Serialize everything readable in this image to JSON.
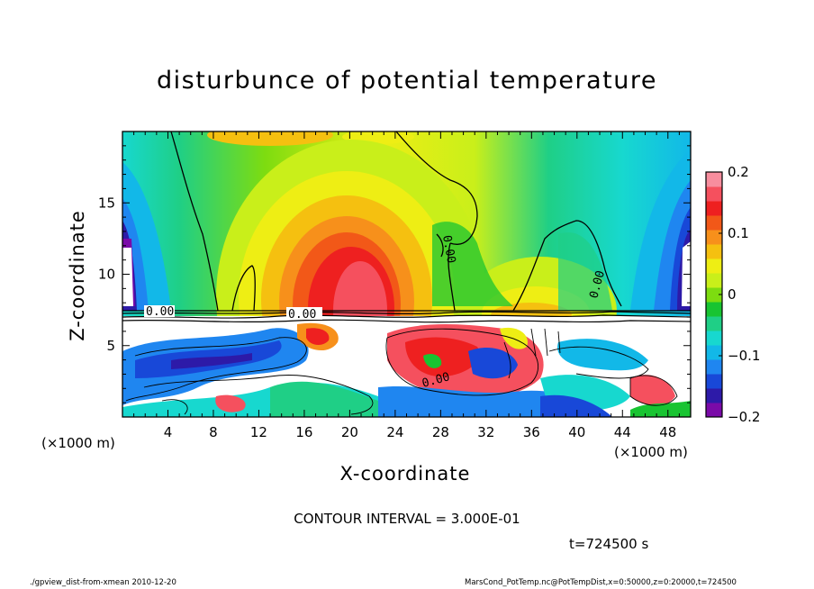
{
  "chart_data": {
    "type": "heatmap",
    "title": "disturbunce of potential temperature",
    "xlabel": "X-coordinate",
    "ylabel": "Z-coordinate",
    "x_unit_left": "(×1000 m)",
    "x_unit_right": "(×1000 m)",
    "xlim": [
      0,
      50
    ],
    "ylim": [
      0,
      20
    ],
    "x_ticks": [
      4,
      8,
      12,
      16,
      20,
      24,
      28,
      32,
      36,
      40,
      44,
      48
    ],
    "y_ticks": [
      5,
      10,
      15
    ],
    "colorbar": {
      "vmin": -0.2,
      "vmax": 0.2,
      "tick_values": [
        0.2,
        0.1,
        0,
        -0.1,
        -0.2
      ],
      "tick_labels": [
        "0.2",
        "0.1",
        "0",
        "−0.1",
        "−0.2"
      ],
      "colors": [
        "#7a0aa8",
        "#2d1aa8",
        "#1848d8",
        "#1f86f0",
        "#12b8e8",
        "#17d8cf",
        "#1fcf86",
        "#18c431",
        "#7ddc10",
        "#c9ef1a",
        "#eeee14",
        "#f5c010",
        "#f7901b",
        "#f25818",
        "#ee2020",
        "#f5505e",
        "#f78e9e"
      ]
    },
    "contour_labels": [
      "0.00",
      "0.00",
      "0.00",
      "0.00",
      "0.00"
    ],
    "contour_interval": "CONTOUR INTERVAL = 3.000E-01",
    "features": [
      {
        "name": "warm dome",
        "x_center": 20,
        "z_top": 14.5,
        "value": 0.2
      },
      {
        "name": "cold upper flanks",
        "x": [
          0,
          2
        ],
        "value": -0.2
      },
      {
        "name": "cold upper flanks",
        "x": [
          48,
          50
        ],
        "value": -0.2
      },
      {
        "name": "boundary layer top",
        "z": 7.2
      }
    ]
  },
  "texts": {
    "time": "t=724500 s",
    "footer_left": "./gpview_dist-from-xmean   2010-12-20",
    "footer_right": "MarsCond_PotTemp.nc@PotTempDist,x=0:50000,z=0:20000,t=724500"
  }
}
